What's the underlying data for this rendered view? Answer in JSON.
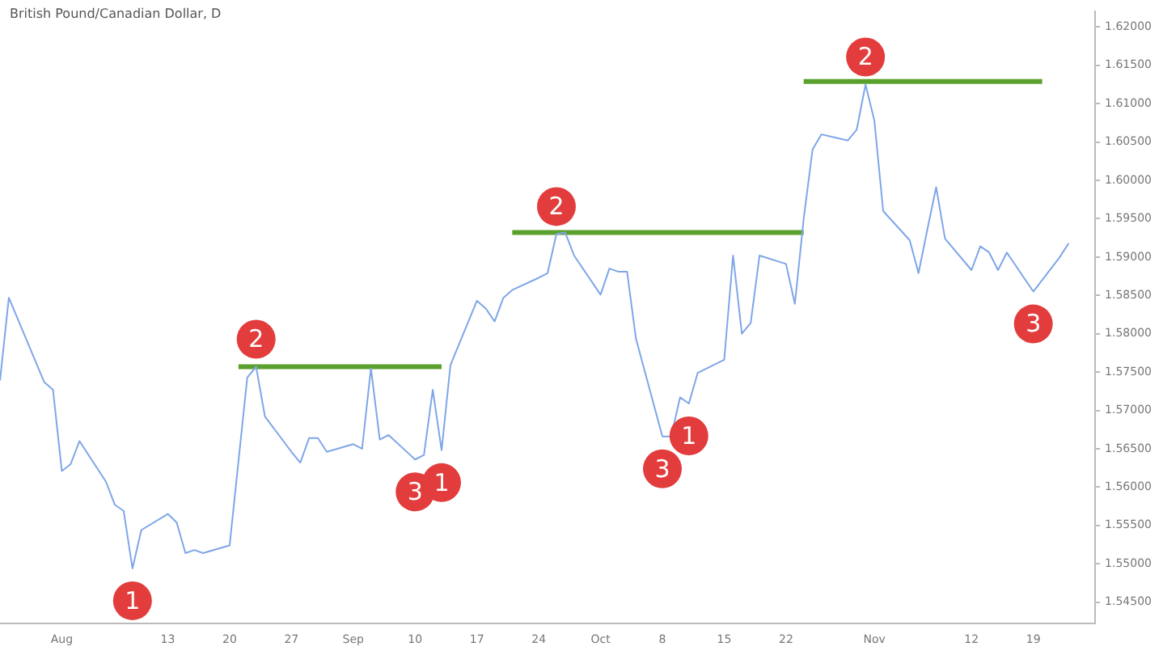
{
  "chart_data": {
    "type": "line",
    "title": "British Pound/Canadian Dollar, D",
    "series": [
      {
        "color": "#7fa6e8",
        "x": [
          "--07-25",
          "--07-26",
          "--07-30",
          "--07-31",
          "--08-01",
          "--08-02",
          "--08-03",
          "--08-06",
          "--08-07",
          "--08-08",
          "--08-09",
          "--08-10",
          "--08-13",
          "--08-14",
          "--08-15",
          "--08-16",
          "--08-17",
          "--08-20",
          "--08-22",
          "--08-23",
          "--08-24",
          "--08-27",
          "--08-28",
          "--08-29",
          "--08-30",
          "--08-31",
          "--09-03",
          "--09-04",
          "--09-05",
          "--09-06",
          "--09-07",
          "--09-10",
          "--09-11",
          "--09-12",
          "--09-13",
          "--09-14",
          "--09-17",
          "--09-18",
          "--09-19",
          "--09-20",
          "--09-21",
          "--09-24",
          "--09-25",
          "--09-26",
          "--09-27",
          "--09-28",
          "--10-01",
          "--10-02",
          "--10-03",
          "--10-04",
          "--10-05",
          "--10-08",
          "--10-09",
          "--10-10",
          "--10-11",
          "--10-12",
          "--10-15",
          "--10-16",
          "--10-17",
          "--10-18",
          "--10-19",
          "--10-22",
          "--10-23",
          "--10-24",
          "--10-25",
          "--10-26",
          "--10-29",
          "--10-30",
          "--10-31",
          "--11-01",
          "--11-02",
          "--11-05",
          "--11-06",
          "--11-07",
          "--11-08",
          "--11-09",
          "--11-12",
          "--11-13",
          "--11-14",
          "--11-15",
          "--11-16",
          "--11-19",
          "--11-21",
          "--11-22",
          "--11-23"
        ],
        "values": [
          1.5739,
          1.5847,
          1.5737,
          1.5727,
          1.5621,
          1.563,
          1.566,
          1.5607,
          1.5577,
          1.5569,
          1.5494,
          1.5544,
          1.5565,
          1.5554,
          1.5514,
          1.5518,
          1.5514,
          1.5524,
          1.5743,
          1.5757,
          1.5692,
          1.5646,
          1.5632,
          1.5664,
          1.5664,
          1.5646,
          1.5656,
          1.565,
          1.5755,
          1.5662,
          1.5668,
          1.5636,
          1.5642,
          1.5727,
          1.5648,
          1.5759,
          1.5843,
          1.5833,
          1.5816,
          1.5847,
          1.5857,
          1.5873,
          1.5879,
          1.593,
          1.5932,
          1.5902,
          1.5851,
          1.5885,
          1.5881,
          1.5881,
          1.5794,
          1.5666,
          1.5666,
          1.5717,
          1.5709,
          1.5749,
          1.5766,
          1.5902,
          1.58,
          1.5814,
          1.5902,
          1.5891,
          1.5839,
          1.595,
          1.604,
          1.606,
          1.6052,
          1.6066,
          1.6125,
          1.6078,
          1.596,
          1.5922,
          1.5879,
          1.5936,
          1.5991,
          1.5924,
          1.5883,
          1.5914,
          1.5906,
          1.5883,
          1.5906,
          1.5855,
          1.5885,
          1.59,
          1.5918
        ]
      },
      {
        "color": "#5aa02c",
        "x": [
          "--08-21",
          "--09-13"
        ],
        "values": [
          1.5757,
          1.5757
        ]
      },
      {
        "color": "#5aa02c",
        "x": [
          "--09-21",
          "--10-24"
        ],
        "values": [
          1.5932,
          1.5932
        ]
      },
      {
        "color": "#5aa02c",
        "x": [
          "--10-24",
          "--11-20"
        ],
        "values": [
          1.6129,
          1.6129
        ]
      }
    ],
    "xlim": [
      "--07-25",
      "--11-26"
    ],
    "xticks": [
      {
        "value": "--08-01",
        "label": "Aug"
      },
      {
        "value": "--08-13",
        "label": "13"
      },
      {
        "value": "--08-20",
        "label": "20"
      },
      {
        "value": "--08-27",
        "label": "27"
      },
      {
        "value": "--09-03",
        "label": "Sep"
      },
      {
        "value": "--09-10",
        "label": "10"
      },
      {
        "value": "--09-17",
        "label": "17"
      },
      {
        "value": "--09-24",
        "label": "24"
      },
      {
        "value": "--10-01",
        "label": "Oct"
      },
      {
        "value": "--10-08",
        "label": "8"
      },
      {
        "value": "--10-15",
        "label": "15"
      },
      {
        "value": "--10-22",
        "label": "22"
      },
      {
        "value": "--11-01",
        "label": "Nov"
      },
      {
        "value": "--11-12",
        "label": "12"
      },
      {
        "value": "--11-19",
        "label": "19"
      }
    ],
    "ylim": [
      1.5422,
      1.622
    ],
    "yticks": [
      {
        "value": 1.545,
        "label": "1.54500"
      },
      {
        "value": 1.55,
        "label": "1.55000"
      },
      {
        "value": 1.555,
        "label": "1.55500"
      },
      {
        "value": 1.56,
        "label": "1.56000"
      },
      {
        "value": 1.565,
        "label": "1.56500"
      },
      {
        "value": 1.57,
        "label": "1.57000"
      },
      {
        "value": 1.575,
        "label": "1.57500"
      },
      {
        "value": 1.58,
        "label": "1.58000"
      },
      {
        "value": 1.585,
        "label": "1.58500"
      },
      {
        "value": 1.59,
        "label": "1.59000"
      },
      {
        "value": 1.595,
        "label": "1.59500"
      },
      {
        "value": 1.6,
        "label": "1.60000"
      },
      {
        "value": 1.605,
        "label": "1.60500"
      },
      {
        "value": 1.61,
        "label": "1.61000"
      },
      {
        "value": 1.615,
        "label": "1.61500"
      },
      {
        "value": 1.62,
        "label": "1.62000"
      }
    ],
    "annotations": [
      {
        "text": "1",
        "x": "--08-09",
        "y": 1.5494
      },
      {
        "text": "2",
        "x": "--08-23",
        "y": 1.5757
      },
      {
        "text": "3",
        "x": "--09-10",
        "y": 1.5636
      },
      {
        "text": "1",
        "x": "--09-13",
        "y": 1.5648
      },
      {
        "text": "2",
        "x": "--09-26",
        "y": 1.593
      },
      {
        "text": "3",
        "x": "--10-08",
        "y": 1.5666
      },
      {
        "text": "1",
        "x": "--10-11",
        "y": 1.5709
      },
      {
        "text": "2",
        "x": "--10-31",
        "y": 1.6125
      },
      {
        "text": "3",
        "x": "--11-19",
        "y": 1.5855
      }
    ],
    "grid": false,
    "legend": false,
    "marker": "none",
    "line_style": "solid"
  }
}
